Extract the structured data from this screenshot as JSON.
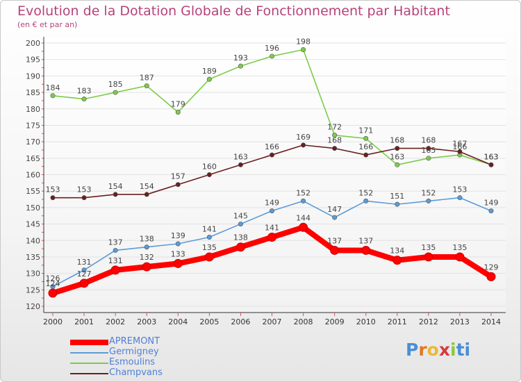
{
  "title": "Evolution de la Dotation Globale de Fonctionnement par Habitant",
  "subtitle": "(en € et par an)",
  "logo": {
    "text": "Proxiti",
    "letters": [
      "P",
      "r",
      "o",
      "x",
      "i",
      "t",
      "i"
    ],
    "colors": [
      "#4a8ed8",
      "#e07828",
      "#e8b838",
      "#d43c3c",
      "#8cc83c",
      "#4a8ed8",
      "#4a8ed8"
    ]
  },
  "chart_data": {
    "type": "line",
    "title": "Evolution de la Dotation Globale de Fonctionnement par Habitant",
    "subtitle": "(en € et par an)",
    "x": [
      2000,
      2001,
      2002,
      2003,
      2004,
      2005,
      2006,
      2007,
      2008,
      2009,
      2010,
      2011,
      2012,
      2013,
      2014
    ],
    "x_tick_labels": [
      "2000",
      "2001",
      "2002",
      "2003",
      "2004",
      "2005",
      "2006",
      "2007",
      "2008",
      "2009",
      "2010",
      "2011",
      "2012",
      "2013",
      "2014"
    ],
    "ylim": [
      120,
      200
    ],
    "y_ticks": [
      120,
      125,
      130,
      135,
      140,
      145,
      150,
      155,
      160,
      165,
      170,
      175,
      180,
      185,
      190,
      195,
      200
    ],
    "y_tick_labels": [
      "120",
      "125",
      "130",
      "135",
      "140",
      "145",
      "150",
      "155",
      "160",
      "165",
      "170",
      "175",
      "180",
      "185",
      "190",
      "195",
      "200"
    ],
    "grid": "horizontal",
    "legend_position": "bottom-left",
    "series": [
      {
        "name": "APREMONT",
        "color": "#ff0000",
        "highlight": true,
        "values": [
          124,
          127,
          131,
          132,
          133,
          135,
          138,
          141,
          144,
          137,
          137,
          134,
          135,
          135,
          129
        ],
        "labels": [
          "124",
          "127",
          "131",
          "132",
          "133",
          "135",
          "138",
          "141",
          "144",
          "137",
          "137",
          "134",
          "135",
          "135",
          "129"
        ]
      },
      {
        "name": "Germigney",
        "color": "#5b9bd5",
        "highlight": false,
        "values": [
          126,
          131,
          137,
          138,
          139,
          141,
          145,
          149,
          152,
          147,
          152,
          151,
          152,
          153,
          149
        ],
        "labels": [
          "126",
          "131",
          "137",
          "138",
          "139",
          "141",
          "145",
          "149",
          "152",
          "147",
          "152",
          "151",
          "152",
          "153",
          "149"
        ]
      },
      {
        "name": "Esmoulins",
        "color": "#7ccc4a",
        "highlight": false,
        "values": [
          184,
          183,
          185,
          187,
          179,
          189,
          193,
          196,
          198,
          172,
          171,
          163,
          165,
          166,
          163
        ],
        "labels": [
          "184",
          "183",
          "185",
          "187",
          "179",
          "189",
          "193",
          "196",
          "198",
          "172",
          "171",
          "163",
          "165",
          "166",
          "163"
        ]
      },
      {
        "name": "Champvans",
        "color": "#6b1e1e",
        "highlight": false,
        "values": [
          153,
          153,
          154,
          154,
          157,
          160,
          163,
          166,
          169,
          168,
          166,
          168,
          168,
          167,
          163
        ],
        "labels": [
          "153",
          "153",
          "154",
          "154",
          "157",
          "160",
          "163",
          "166",
          "169",
          "168",
          "166",
          "168",
          "168",
          "167",
          "163"
        ]
      }
    ]
  }
}
